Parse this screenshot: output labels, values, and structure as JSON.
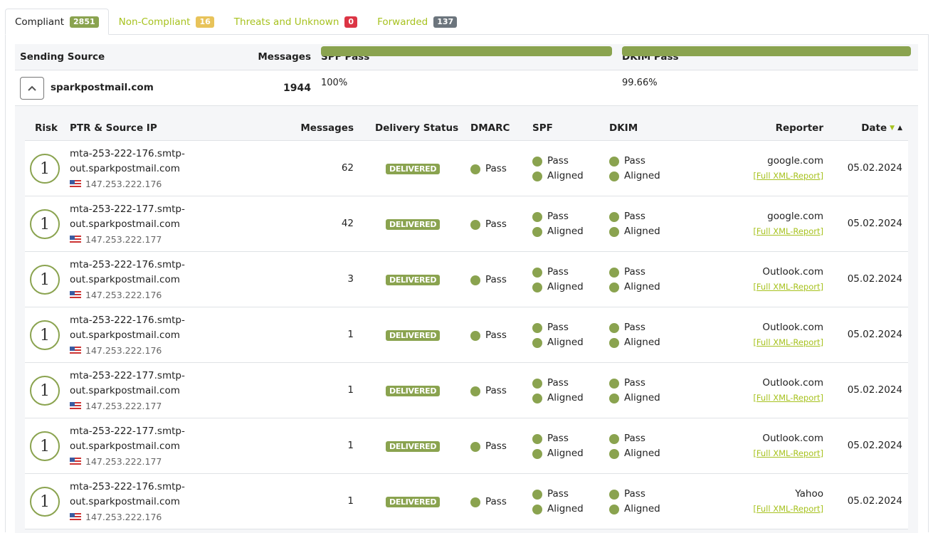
{
  "tabs": [
    {
      "label": "Compliant",
      "count": "2851",
      "color": "#8aa34f",
      "active": true
    },
    {
      "label": "Non-Compliant",
      "count": "16",
      "color": "#e8c35a"
    },
    {
      "label": "Threats and Unknown",
      "count": "0",
      "color": "#dc3545"
    },
    {
      "label": "Forwarded",
      "count": "137",
      "color": "#6c757d"
    }
  ],
  "outer": {
    "headers": {
      "source": "Sending Source",
      "messages": "Messages",
      "spf": "SPF Pass",
      "dkim": "DKIM Pass"
    },
    "row": {
      "source": "sparkpostmail.com",
      "messages": "1944",
      "spf_label": "100%",
      "spf_pct": 100,
      "dkim_label": "99.66%",
      "dkim_pct": 99.66
    }
  },
  "inner": {
    "headers": {
      "risk": "Risk",
      "ptr": "PTR & Source IP",
      "messages": "Messages",
      "delivery": "Delivery Status",
      "dmarc": "DMARC",
      "spf": "SPF",
      "dkim": "DKIM",
      "reporter": "Reporter",
      "date": "Date"
    },
    "xml_label": "[Full XML-Report]",
    "rows": [
      {
        "risk": "1",
        "ptr1": "mta-253-222-176.smtp-",
        "ptr2": "out.sparkpostmail.com",
        "ip": "147.253.222.176",
        "messages": "62",
        "delivery": "DELIVERED",
        "dmarc": "Pass",
        "spf1": "Pass",
        "spf2": "Aligned",
        "dkim1": "Pass",
        "dkim2": "Aligned",
        "reporter": "google.com",
        "date": "05.02.2024"
      },
      {
        "risk": "1",
        "ptr1": "mta-253-222-177.smtp-",
        "ptr2": "out.sparkpostmail.com",
        "ip": "147.253.222.177",
        "messages": "42",
        "delivery": "DELIVERED",
        "dmarc": "Pass",
        "spf1": "Pass",
        "spf2": "Aligned",
        "dkim1": "Pass",
        "dkim2": "Aligned",
        "reporter": "google.com",
        "date": "05.02.2024"
      },
      {
        "risk": "1",
        "ptr1": "mta-253-222-176.smtp-",
        "ptr2": "out.sparkpostmail.com",
        "ip": "147.253.222.176",
        "messages": "3",
        "delivery": "DELIVERED",
        "dmarc": "Pass",
        "spf1": "Pass",
        "spf2": "Aligned",
        "dkim1": "Pass",
        "dkim2": "Aligned",
        "reporter": "Outlook.com",
        "date": "05.02.2024"
      },
      {
        "risk": "1",
        "ptr1": "mta-253-222-176.smtp-",
        "ptr2": "out.sparkpostmail.com",
        "ip": "147.253.222.176",
        "messages": "1",
        "delivery": "DELIVERED",
        "dmarc": "Pass",
        "spf1": "Pass",
        "spf2": "Aligned",
        "dkim1": "Pass",
        "dkim2": "Aligned",
        "reporter": "Outlook.com",
        "date": "05.02.2024"
      },
      {
        "risk": "1",
        "ptr1": "mta-253-222-177.smtp-",
        "ptr2": "out.sparkpostmail.com",
        "ip": "147.253.222.177",
        "messages": "1",
        "delivery": "DELIVERED",
        "dmarc": "Pass",
        "spf1": "Pass",
        "spf2": "Aligned",
        "dkim1": "Pass",
        "dkim2": "Aligned",
        "reporter": "Outlook.com",
        "date": "05.02.2024"
      },
      {
        "risk": "1",
        "ptr1": "mta-253-222-177.smtp-",
        "ptr2": "out.sparkpostmail.com",
        "ip": "147.253.222.177",
        "messages": "1",
        "delivery": "DELIVERED",
        "dmarc": "Pass",
        "spf1": "Pass",
        "spf2": "Aligned",
        "dkim1": "Pass",
        "dkim2": "Aligned",
        "reporter": "Outlook.com",
        "date": "05.02.2024"
      },
      {
        "risk": "1",
        "ptr1": "mta-253-222-176.smtp-",
        "ptr2": "out.sparkpostmail.com",
        "ip": "147.253.222.176",
        "messages": "1",
        "delivery": "DELIVERED",
        "dmarc": "Pass",
        "spf1": "Pass",
        "spf2": "Aligned",
        "dkim1": "Pass",
        "dkim2": "Aligned",
        "reporter": "Yahoo",
        "date": "05.02.2024"
      }
    ]
  }
}
